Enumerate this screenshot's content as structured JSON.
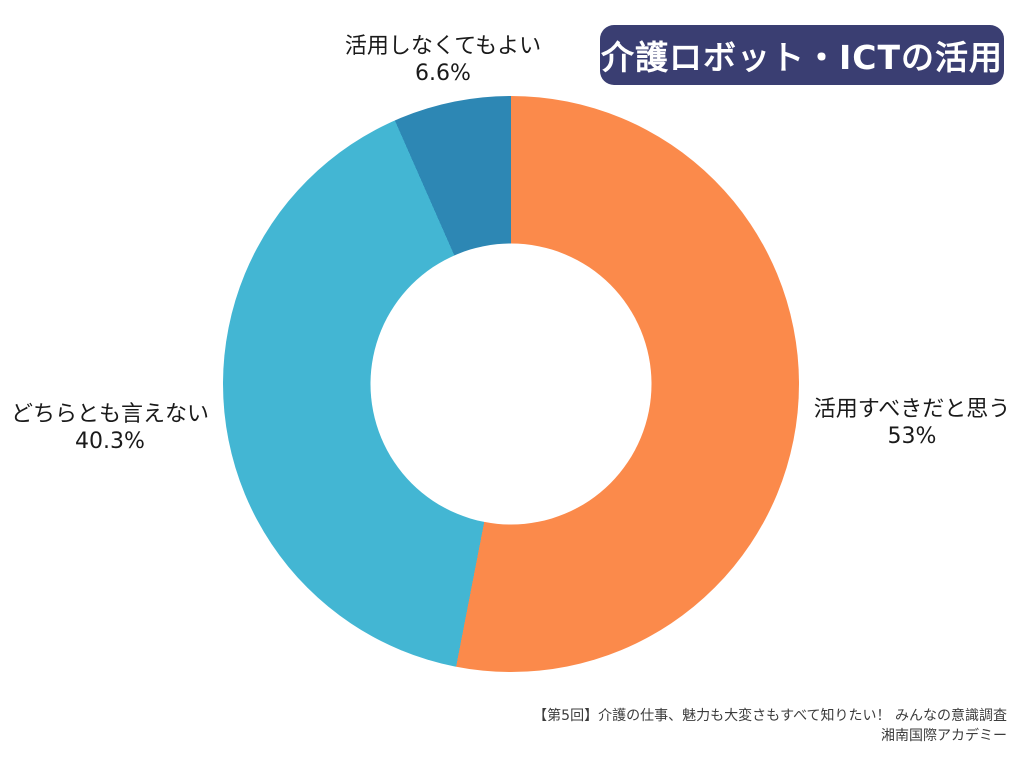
{
  "title": {
    "text": "介護ロボット・ICTの活用",
    "bg_color": "#3a3e72",
    "text_color": "#ffffff"
  },
  "chart_data": {
    "type": "pie",
    "subtype": "donut",
    "title": "介護ロボット・ICTの活用",
    "direction": "clockwise",
    "start_angle_deg": 0,
    "inner_radius_ratio": 0.49,
    "legend_position": "outside-labels",
    "segments": [
      {
        "label": "活用すべきだと思う",
        "value": 53,
        "percent_label": "53%",
        "color": "#fb8a4b"
      },
      {
        "label": "どちらとも言えない",
        "value": 40.3,
        "percent_label": "40.3%",
        "color": "#43b6d3"
      },
      {
        "label": "活用しなくてもよい",
        "value": 6.6,
        "percent_label": "6.6%",
        "color": "#2d87b4"
      }
    ]
  },
  "footer": {
    "line1": "【第5回】介護の仕事、魅力も大変さもすべて知りたい！ みんなの意識調査",
    "line2": "湘南国際アカデミー"
  }
}
